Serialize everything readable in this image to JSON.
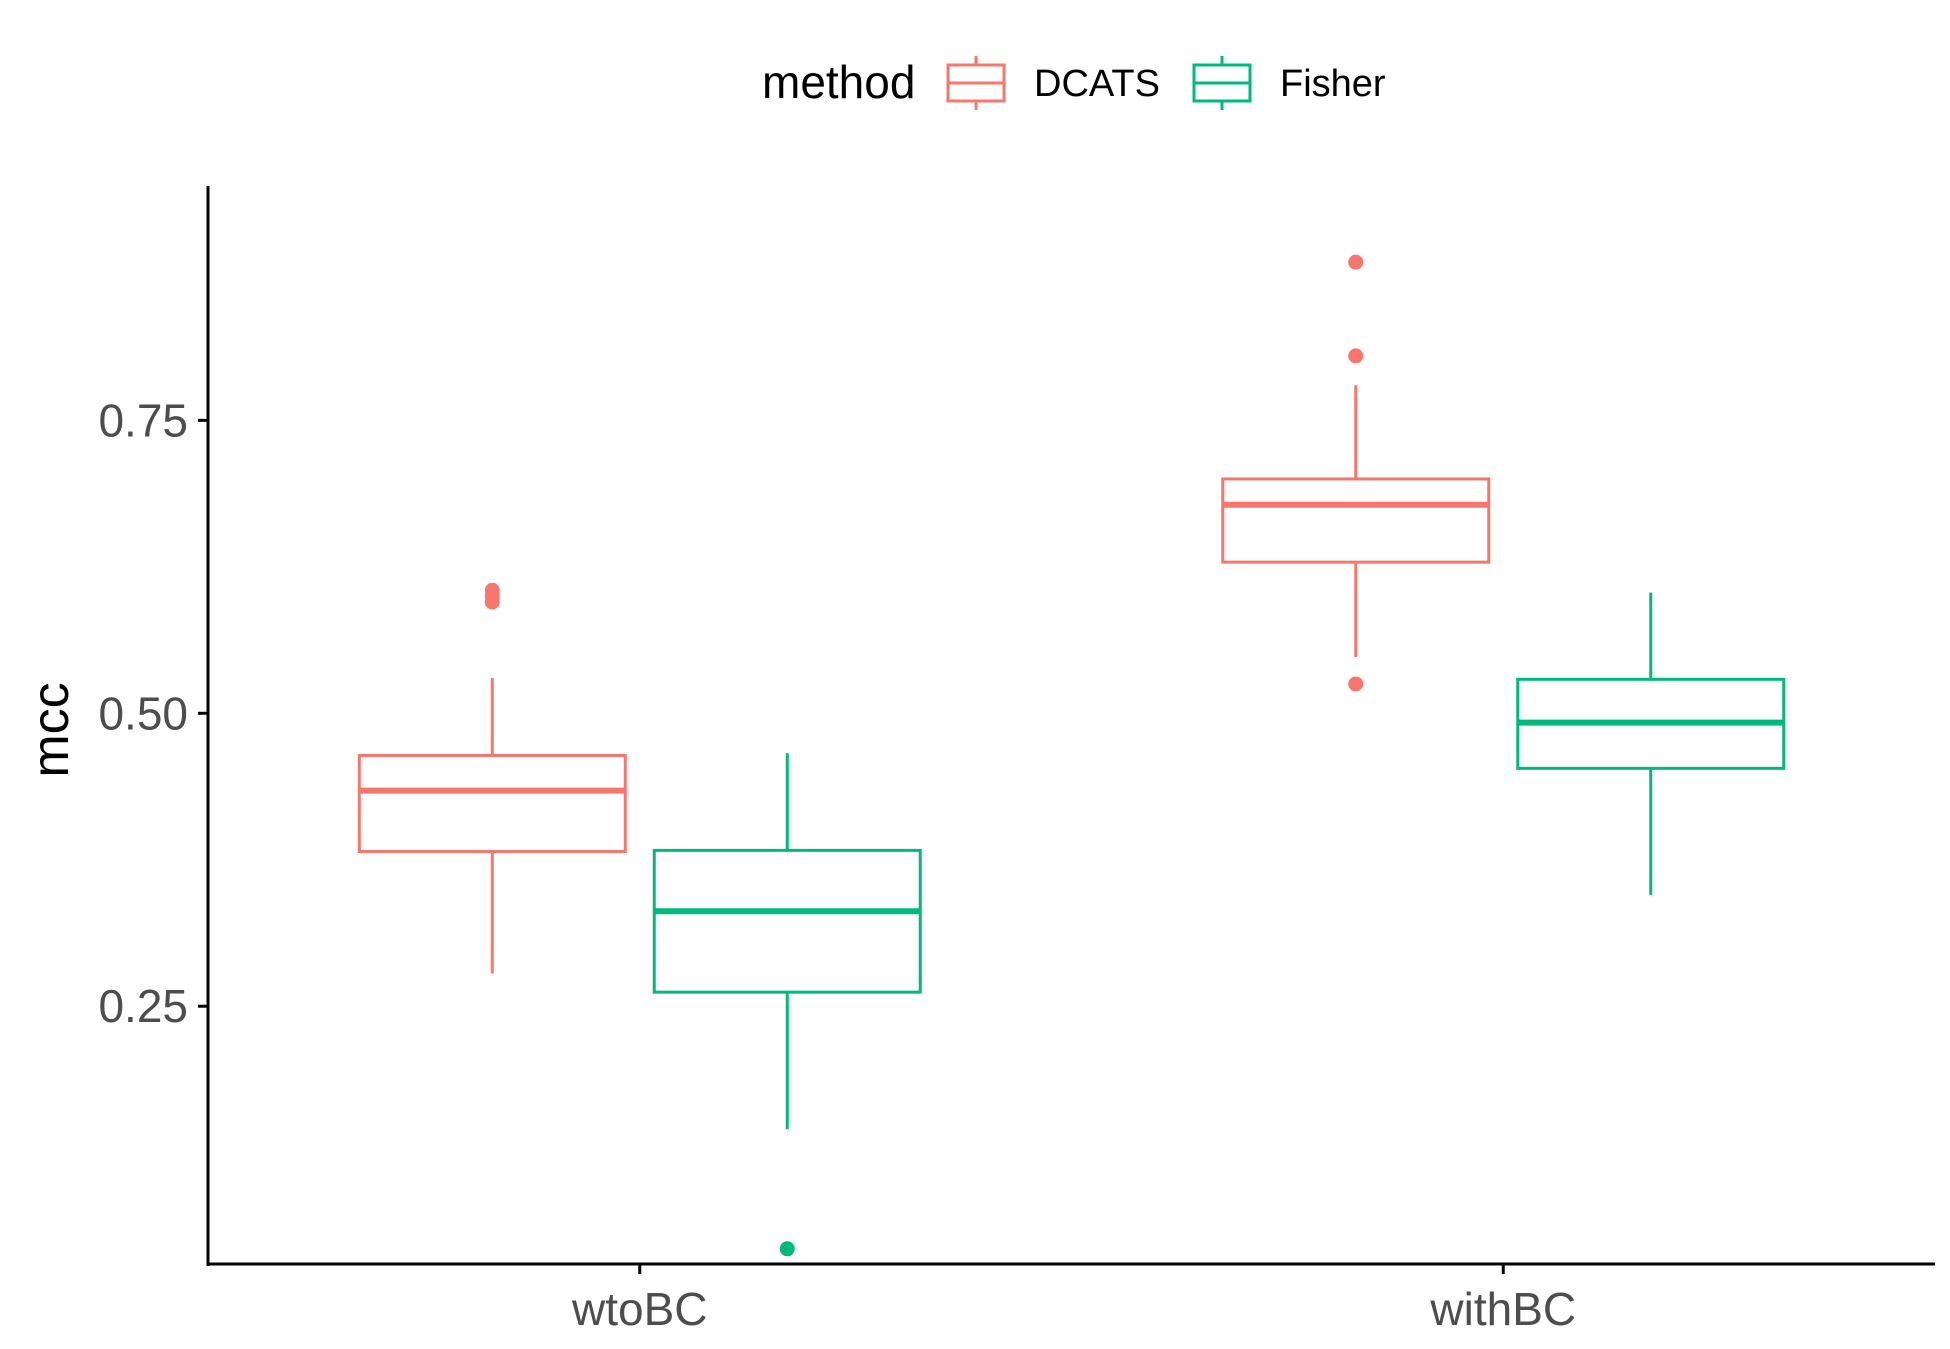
{
  "chart_data": {
    "type": "boxplot",
    "title": "",
    "xlabel": "",
    "ylabel": "mcc",
    "ylim": [
      0.03,
      0.95
    ],
    "y_ticks": [
      0.25,
      0.5,
      0.75
    ],
    "y_tick_labels": [
      "0.25",
      "0.50",
      "0.75"
    ],
    "grid": false,
    "legend": {
      "title": "method",
      "placement": "top",
      "entries": [
        "DCATS",
        "Fisher"
      ]
    },
    "categories": [
      "wtoBC",
      "withBC"
    ],
    "series": [
      {
        "name": "DCATS",
        "color": "#F8766D",
        "boxes": [
          {
            "category": "wtoBC",
            "lower_whisker": 0.278,
            "q1": 0.382,
            "median": 0.434,
            "q3": 0.464,
            "upper_whisker": 0.53,
            "outliers": [
              0.595,
              0.6,
              0.605
            ]
          },
          {
            "category": "withBC",
            "lower_whisker": 0.548,
            "q1": 0.629,
            "median": 0.678,
            "q3": 0.7,
            "upper_whisker": 0.78,
            "outliers": [
              0.525,
              0.805,
              0.885
            ]
          }
        ]
      },
      {
        "name": "Fisher",
        "color": "#00BA7D",
        "boxes": [
          {
            "category": "wtoBC",
            "lower_whisker": 0.145,
            "q1": 0.262,
            "median": 0.331,
            "q3": 0.383,
            "upper_whisker": 0.466,
            "outliers": [
              0.043
            ]
          },
          {
            "category": "withBC",
            "lower_whisker": 0.345,
            "q1": 0.453,
            "median": 0.492,
            "q3": 0.529,
            "upper_whisker": 0.603,
            "outliers": []
          }
        ]
      }
    ]
  }
}
